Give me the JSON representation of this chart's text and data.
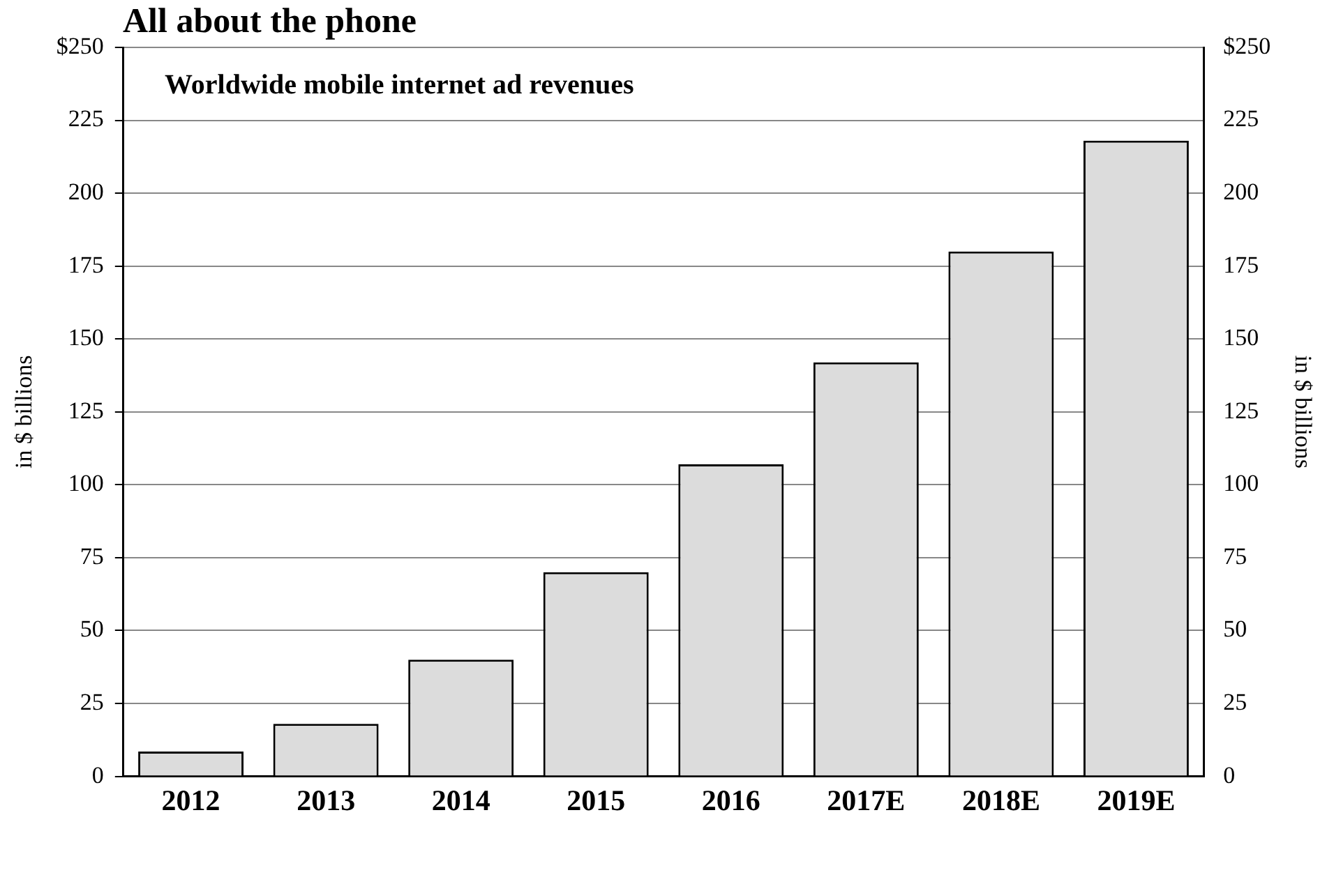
{
  "chart_data": {
    "type": "bar",
    "title": "All about the phone",
    "subtitle": "Worldwide mobile internet ad revenues",
    "ylabel": "in $ billions",
    "y2label": "in $ billions",
    "categories": [
      "2012",
      "2013",
      "2014",
      "2015",
      "2016",
      "2017E",
      "2018E",
      "2019E"
    ],
    "values": [
      8.5,
      18,
      40,
      70,
      107,
      142,
      180,
      218
    ],
    "color": "#dcdcdc",
    "ylim": [
      0,
      250
    ],
    "yticks": [
      0,
      25,
      50,
      75,
      100,
      125,
      150,
      175,
      200,
      225,
      {
        "value": 250,
        "label": "$250"
      }
    ],
    "y2lim": [
      0,
      250
    ],
    "y2ticks": [
      0,
      25,
      50,
      75,
      100,
      125,
      150,
      175,
      200,
      225,
      {
        "value": 250,
        "label": "$250"
      }
    ],
    "grid": "y",
    "legend": false
  }
}
